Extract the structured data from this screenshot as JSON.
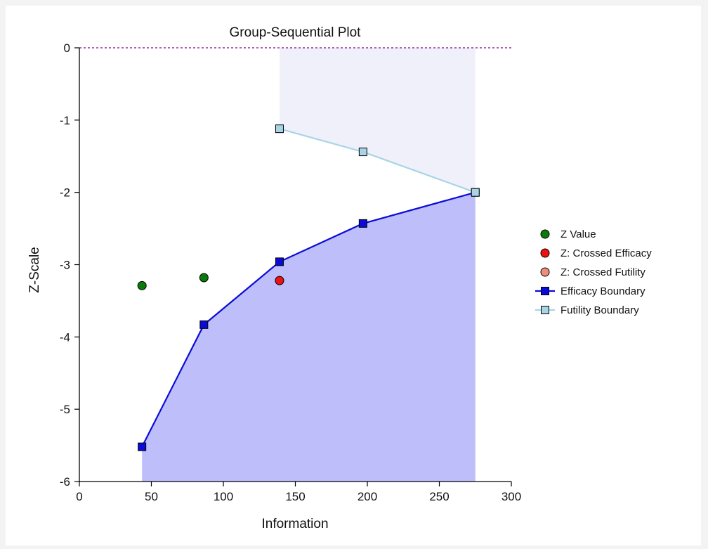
{
  "chart_data": {
    "type": "scatter",
    "title": "Group-Sequential Plot",
    "xlabel": "Information",
    "ylabel": "Z-Scale",
    "xlim": [
      0,
      300
    ],
    "ylim": [
      -6,
      0
    ],
    "x_ticks": [
      0,
      50,
      100,
      150,
      200,
      250,
      300
    ],
    "y_ticks": [
      0,
      -1,
      -2,
      -3,
      -4,
      -5,
      -6
    ],
    "reference_line_y": 0,
    "legend_position": "right",
    "series": [
      {
        "name": "Z Value",
        "kind": "points",
        "marker": "circle",
        "color": "#0a7a0a",
        "points": [
          [
            43.5,
            -3.29
          ],
          [
            86.5,
            -3.18
          ]
        ]
      },
      {
        "name": "Z: Crossed Efficacy",
        "kind": "points",
        "marker": "circle",
        "color": "#ee1111",
        "points": [
          [
            139,
            -3.22
          ]
        ]
      },
      {
        "name": "Z: Crossed Futility",
        "kind": "points",
        "marker": "circle",
        "color": "#f08c7a",
        "points": []
      },
      {
        "name": "Efficacy Boundary",
        "kind": "line",
        "marker": "square",
        "color": "#0b0bd8",
        "fill": "#bebefa",
        "points": [
          [
            43.5,
            -5.52
          ],
          [
            86.5,
            -3.83
          ],
          [
            139,
            -2.96
          ],
          [
            197,
            -2.43
          ],
          [
            275,
            -2.0
          ]
        ]
      },
      {
        "name": "Futility Boundary",
        "kind": "line",
        "marker": "square",
        "color": "#a8d4e6",
        "fill": "#f0f0fb",
        "points": [
          [
            139,
            -1.12
          ],
          [
            197,
            -1.44
          ],
          [
            275,
            -2.0
          ]
        ]
      }
    ]
  }
}
